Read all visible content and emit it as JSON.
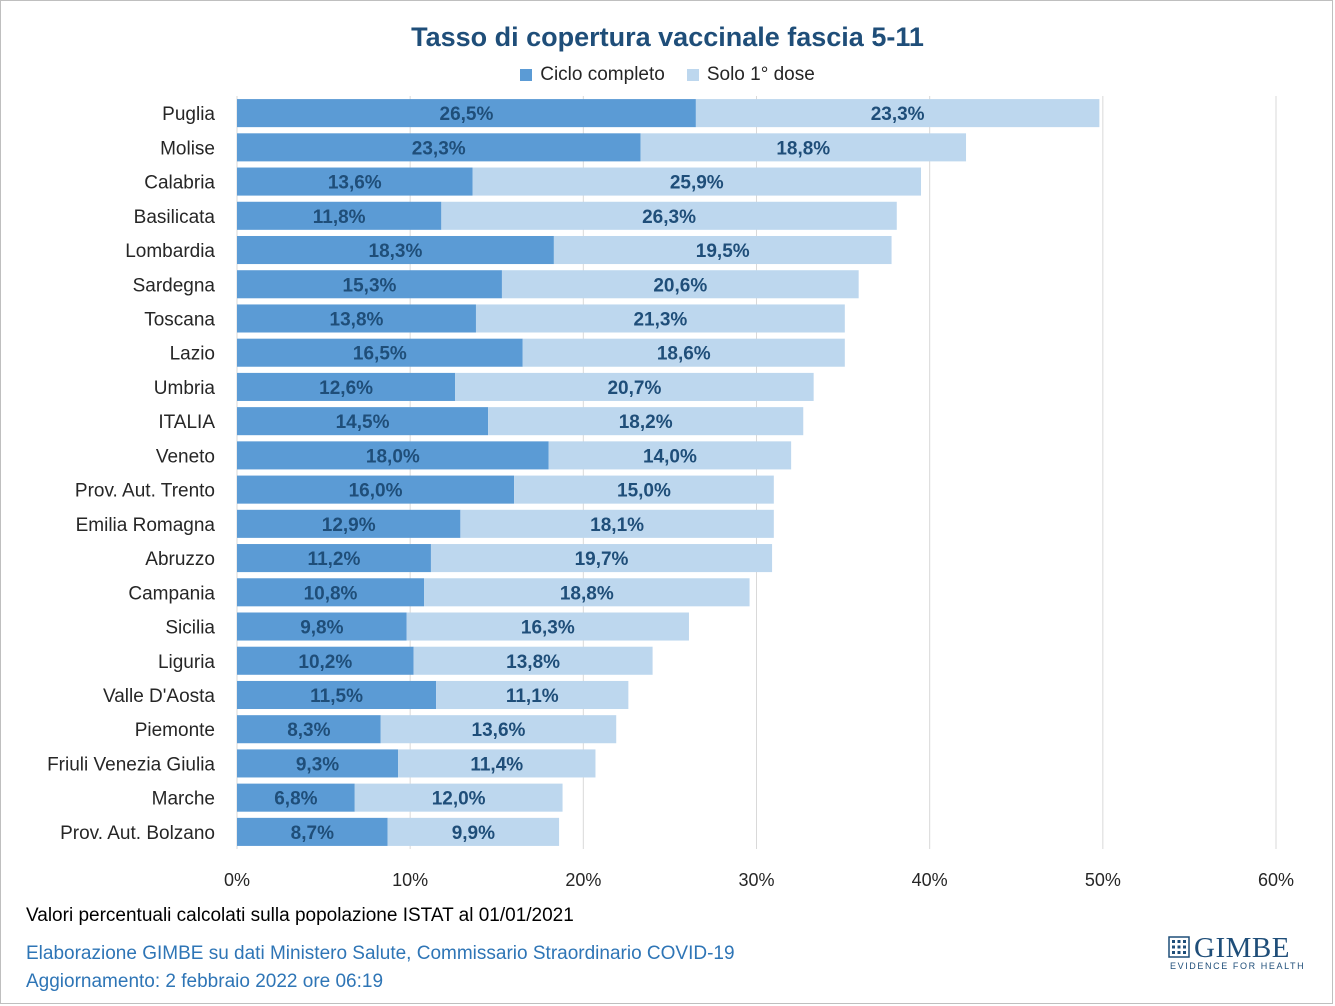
{
  "colors": {
    "ciclo": "#5b9bd5",
    "dose1": "#bdd7ee",
    "title": "#1f4e79",
    "gridline": "#d9d9d9",
    "footer_blue": "#2e75b6"
  },
  "chart_data": {
    "type": "bar",
    "orientation": "horizontal",
    "stacked": true,
    "title": "Tasso di copertura vaccinale fascia 5-11",
    "legend_position": "top",
    "grid": "vertical",
    "xlim": [
      0,
      60
    ],
    "x_ticks": [
      "0%",
      "10%",
      "20%",
      "30%",
      "40%",
      "50%",
      "60%"
    ],
    "categories": [
      "Puglia",
      "Molise",
      "Calabria",
      "Basilicata",
      "Lombardia",
      "Sardegna",
      "Toscana",
      "Lazio",
      "Umbria",
      "ITALIA",
      "Veneto",
      "Prov. Aut. Trento",
      "Emilia Romagna",
      "Abruzzo",
      "Campania",
      "Sicilia",
      "Liguria",
      "Valle D'Aosta",
      "Piemonte",
      "Friuli Venezia Giulia",
      "Marche",
      "Prov. Aut. Bolzano"
    ],
    "series": [
      {
        "name": "Ciclo completo",
        "values": [
          26.5,
          23.3,
          13.6,
          11.8,
          18.3,
          15.3,
          13.8,
          16.5,
          12.6,
          14.5,
          18.0,
          16.0,
          12.9,
          11.2,
          10.8,
          9.8,
          10.2,
          11.5,
          8.3,
          9.3,
          6.8,
          8.7
        ],
        "labels": [
          "26,5%",
          "23,3%",
          "13,6%",
          "11,8%",
          "18,3%",
          "15,3%",
          "13,8%",
          "16,5%",
          "12,6%",
          "14,5%",
          "18,0%",
          "16,0%",
          "12,9%",
          "11,2%",
          "10,8%",
          "9,8%",
          "10,2%",
          "11,5%",
          "8,3%",
          "9,3%",
          "6,8%",
          "8,7%"
        ]
      },
      {
        "name": "Solo 1° dose",
        "values": [
          23.3,
          18.8,
          25.9,
          26.3,
          19.5,
          20.6,
          21.3,
          18.6,
          20.7,
          18.2,
          14.0,
          15.0,
          18.1,
          19.7,
          18.8,
          16.3,
          13.8,
          11.1,
          13.6,
          11.4,
          12.0,
          9.9
        ],
        "labels": [
          "23,3%",
          "18,8%",
          "25,9%",
          "26,3%",
          "19,5%",
          "20,6%",
          "21,3%",
          "18,6%",
          "20,7%",
          "18,2%",
          "14,0%",
          "15,0%",
          "18,1%",
          "19,7%",
          "18,8%",
          "16,3%",
          "13,8%",
          "11,1%",
          "13,6%",
          "11,4%",
          "12,0%",
          "9,9%"
        ]
      }
    ]
  },
  "footer": {
    "note": "Valori percentuali calcolati sulla popolazione ISTAT al 01/01/2021",
    "credit": "Elaborazione GIMBE su dati Ministero Salute, Commissario Straordinario COVID-19",
    "updated": "Aggiornamento: 2 febbraio 2022 ore 06:19"
  },
  "logo": {
    "name": "GIMBE",
    "tagline": "EVIDENCE FOR HEALTH"
  }
}
